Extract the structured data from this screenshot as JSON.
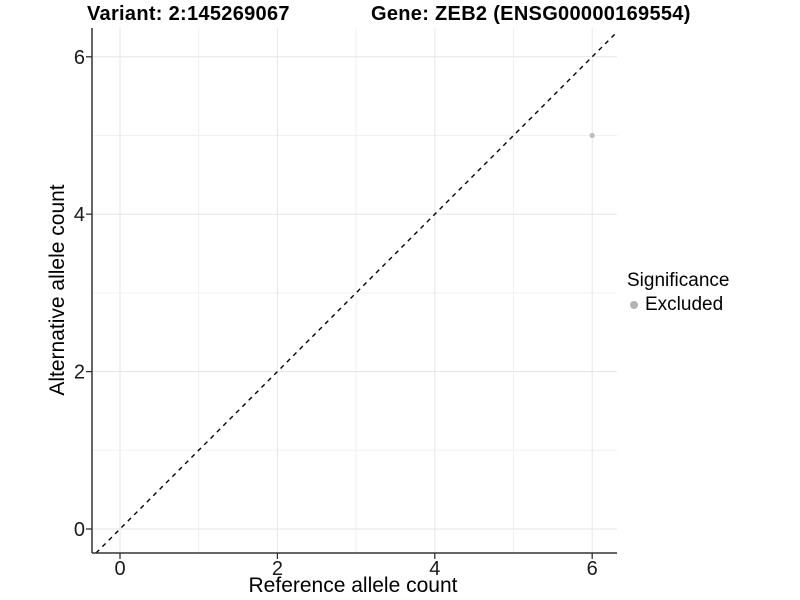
{
  "chart_data": {
    "type": "scatter",
    "title_left": "Variant: 2:145269067",
    "title_right": "Gene: ZEB2 (ENSG00000169554)",
    "xlabel": "Reference allele count",
    "ylabel": "Alternative allele count",
    "xlim": [
      -0.35,
      6.35
    ],
    "ylim": [
      -0.3,
      6.35
    ],
    "x_ticks": [
      0,
      2,
      4,
      6
    ],
    "y_ticks": [
      0,
      2,
      4,
      6
    ],
    "x_minor_gridlines": [
      1,
      3,
      5
    ],
    "y_minor_gridlines": [
      1,
      3,
      5
    ],
    "grid": "major+minor",
    "legend_position": "right",
    "series": [
      {
        "name": "Excluded",
        "color": "#bdbdbd",
        "points": [
          {
            "x": 6,
            "y": 5
          }
        ]
      }
    ],
    "reference_line": {
      "type": "identity",
      "equation": "y = x",
      "style": "dashed",
      "color": "#000000"
    },
    "legend": {
      "title": "Significance",
      "items": [
        {
          "label": "Excluded",
          "color": "#b3b3b3"
        }
      ]
    },
    "colors": {
      "background": "#ffffff",
      "axis_line": "#333333",
      "tick_text": "#1a1a1a",
      "grid_major": "#e6e6e6",
      "grid_minor": "#f0f0f0",
      "point": "#bdbdbd",
      "dashed_line": "#000000"
    }
  }
}
